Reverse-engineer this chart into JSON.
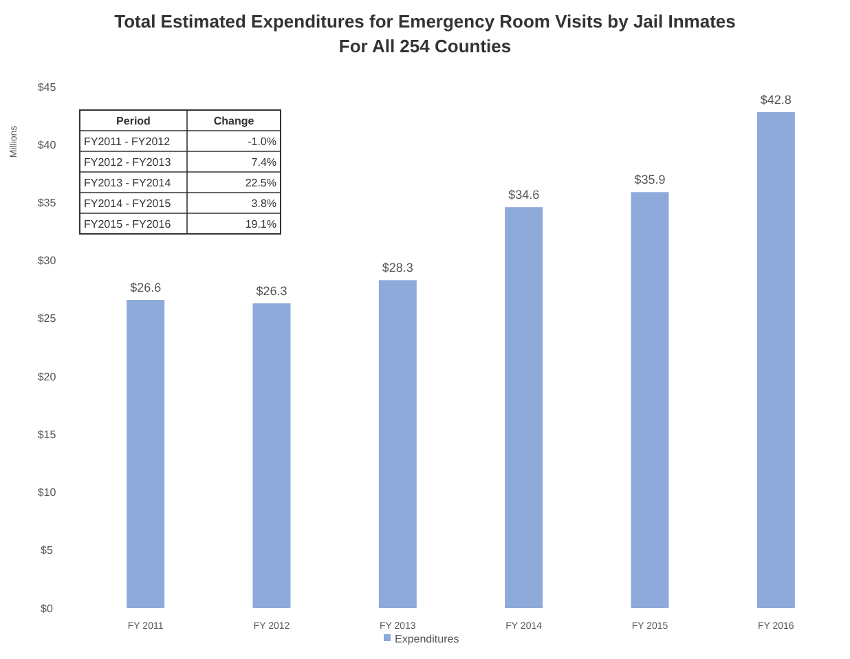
{
  "chart_data": {
    "type": "bar",
    "title": "Total Estimated Expenditures for Emergency Room Visits by Jail Inmates",
    "subtitle": "For All 254 Counties",
    "ylabel": "Millions",
    "categories": [
      "FY 2011",
      "FY 2012",
      "FY 2013",
      "FY 2014",
      "FY 2015",
      "FY 2016"
    ],
    "series": [
      {
        "name": "Expenditures",
        "color": "#8eaadb",
        "values": [
          26.6,
          26.3,
          28.3,
          34.6,
          35.9,
          42.8
        ],
        "value_labels": [
          "$26.6",
          "$26.3",
          "$28.3",
          "$34.6",
          "$35.9",
          "$42.8"
        ]
      }
    ],
    "ylim": [
      0,
      45
    ],
    "yticks": [
      {
        "value": 0,
        "label": "$0"
      },
      {
        "value": 5,
        "label": "$5"
      },
      {
        "value": 10,
        "label": "$10"
      },
      {
        "value": 15,
        "label": "$15"
      },
      {
        "value": 20,
        "label": "$20"
      },
      {
        "value": 25,
        "label": "$25"
      },
      {
        "value": 30,
        "label": "$30"
      },
      {
        "value": 35,
        "label": "$35"
      },
      {
        "value": 40,
        "label": "$40"
      },
      {
        "value": 45,
        "label": "$45"
      }
    ],
    "legend": "bottom",
    "annotations": [
      "Period",
      "Change",
      "FY2011 - FY2012",
      "-1.0%",
      "FY2012 - FY2013",
      "7.4%",
      "FY2013 - FY2014",
      "22.5%",
      "FY2014 - FY2015",
      "3.8%",
      "FY2015 - FY2016",
      "19.1%"
    ]
  }
}
